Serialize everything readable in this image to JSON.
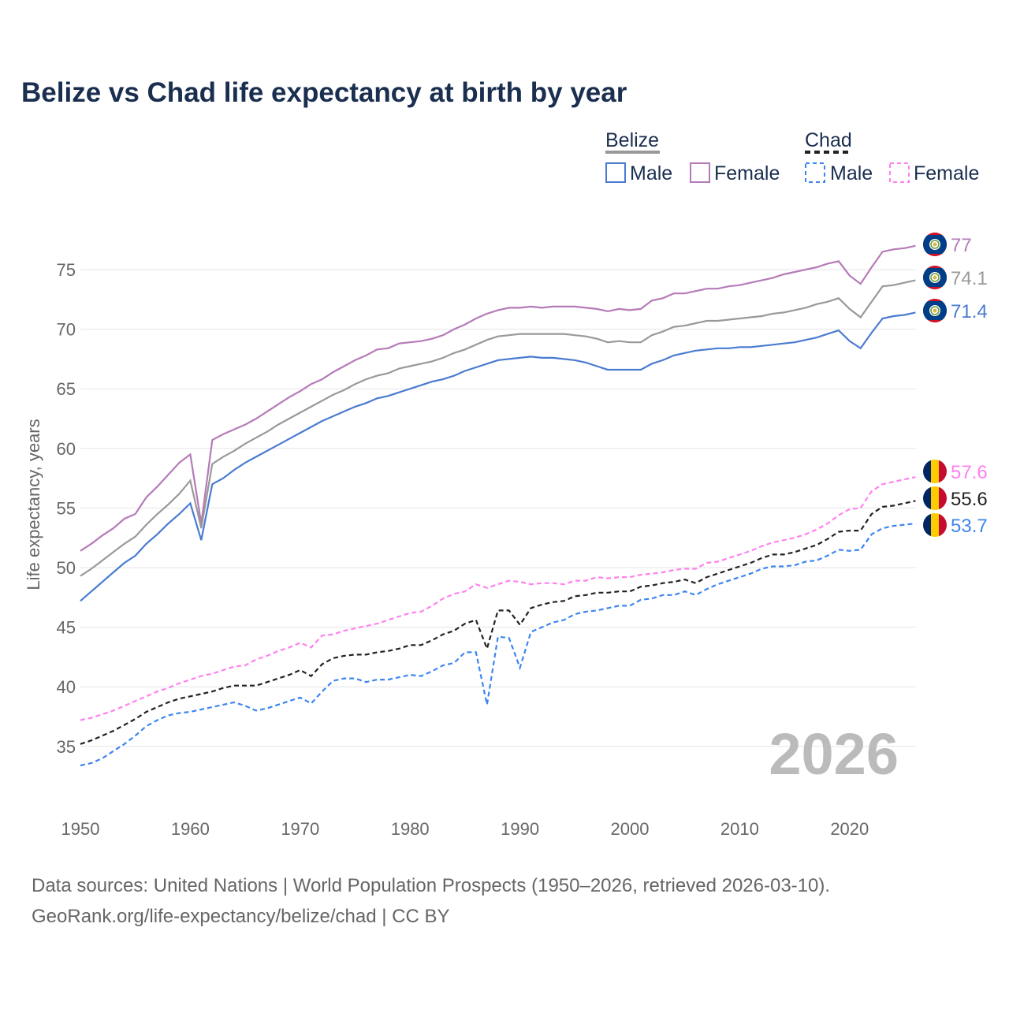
{
  "chart_data": {
    "type": "line",
    "title": "Belize vs Chad life expectancy at birth by year",
    "xlabel": "",
    "ylabel": "Life expectancy, years",
    "xlim": [
      1950,
      2026
    ],
    "ylim": [
      31,
      79
    ],
    "x_ticks": [
      "1950",
      "1960",
      "1970",
      "1980",
      "1990",
      "2000",
      "2010",
      "2020"
    ],
    "y_ticks": [
      "35",
      "40",
      "45",
      "50",
      "55",
      "60",
      "65",
      "70",
      "75"
    ],
    "grid": true,
    "watermark_year": "2026",
    "legend": {
      "placement": "top-right",
      "groups": [
        {
          "name": "Belize",
          "items": [
            "Male",
            "Female"
          ]
        },
        {
          "name": "Chad",
          "items": [
            "Male",
            "Female"
          ]
        }
      ]
    },
    "x_start": 1950,
    "series": [
      {
        "name": "Belize Female",
        "country": "Belize",
        "color": "#b57bb8",
        "dashed": false,
        "end_label": "77",
        "values": [
          51.4,
          52.0,
          52.7,
          53.3,
          54.1,
          54.5,
          55.9,
          56.8,
          57.8,
          58.8,
          59.5,
          53.7,
          60.7,
          61.2,
          61.6,
          62.0,
          62.5,
          63.1,
          63.7,
          64.3,
          64.8,
          65.4,
          65.8,
          66.4,
          66.9,
          67.4,
          67.8,
          68.3,
          68.4,
          68.8,
          68.9,
          69.0,
          69.2,
          69.5,
          70.0,
          70.4,
          70.9,
          71.3,
          71.6,
          71.8,
          71.8,
          71.9,
          71.8,
          71.9,
          71.9,
          71.9,
          71.8,
          71.7,
          71.5,
          71.7,
          71.6,
          71.7,
          72.4,
          72.6,
          73.0,
          73.0,
          73.2,
          73.4,
          73.4,
          73.6,
          73.7,
          73.9,
          74.1,
          74.3,
          74.6,
          74.8,
          75.0,
          75.2,
          75.5,
          75.7,
          74.5,
          73.8,
          75.2,
          76.5,
          76.7,
          76.8,
          77.0
        ]
      },
      {
        "name": "Belize Total",
        "country": "Belize",
        "color": "#999999",
        "dashed": false,
        "end_label": "74.1",
        "values": [
          49.3,
          49.9,
          50.6,
          51.3,
          52.0,
          52.6,
          53.6,
          54.5,
          55.3,
          56.2,
          57.3,
          53.3,
          58.7,
          59.3,
          59.8,
          60.4,
          60.9,
          61.4,
          62.0,
          62.5,
          63.0,
          63.5,
          64.0,
          64.5,
          64.9,
          65.4,
          65.8,
          66.1,
          66.3,
          66.7,
          66.9,
          67.1,
          67.3,
          67.6,
          68.0,
          68.3,
          68.7,
          69.1,
          69.4,
          69.5,
          69.6,
          69.6,
          69.6,
          69.6,
          69.6,
          69.5,
          69.4,
          69.2,
          68.9,
          69.0,
          68.9,
          68.9,
          69.5,
          69.8,
          70.2,
          70.3,
          70.5,
          70.7,
          70.7,
          70.8,
          70.9,
          71.0,
          71.1,
          71.3,
          71.4,
          71.6,
          71.8,
          72.1,
          72.3,
          72.6,
          71.7,
          71.0,
          72.3,
          73.6,
          73.7,
          73.9,
          74.1
        ]
      },
      {
        "name": "Belize Male",
        "country": "Belize",
        "color": "#4a7bd0",
        "dashed": false,
        "end_label": "71.4",
        "values": [
          47.2,
          48.0,
          48.8,
          49.6,
          50.4,
          51.0,
          52.0,
          52.8,
          53.7,
          54.5,
          55.4,
          52.3,
          57.0,
          57.5,
          58.2,
          58.8,
          59.3,
          59.8,
          60.3,
          60.8,
          61.3,
          61.8,
          62.3,
          62.7,
          63.1,
          63.5,
          63.8,
          64.2,
          64.4,
          64.7,
          65.0,
          65.3,
          65.6,
          65.8,
          66.1,
          66.5,
          66.8,
          67.1,
          67.4,
          67.5,
          67.6,
          67.7,
          67.6,
          67.6,
          67.5,
          67.4,
          67.2,
          66.9,
          66.6,
          66.6,
          66.6,
          66.6,
          67.1,
          67.4,
          67.8,
          68.0,
          68.2,
          68.3,
          68.4,
          68.4,
          68.5,
          68.5,
          68.6,
          68.7,
          68.8,
          68.9,
          69.1,
          69.3,
          69.6,
          69.9,
          69.0,
          68.4,
          69.7,
          70.9,
          71.1,
          71.2,
          71.4
        ]
      },
      {
        "name": "Chad Female",
        "country": "Chad",
        "color": "#ff80f0",
        "dashed": true,
        "end_label": "57.6",
        "values": [
          37.2,
          37.4,
          37.7,
          38.0,
          38.4,
          38.8,
          39.2,
          39.6,
          39.9,
          40.3,
          40.6,
          40.9,
          41.1,
          41.4,
          41.7,
          41.8,
          42.3,
          42.6,
          43.0,
          43.3,
          43.7,
          43.3,
          44.3,
          44.4,
          44.7,
          44.9,
          45.1,
          45.3,
          45.6,
          45.9,
          46.2,
          46.3,
          46.8,
          47.4,
          47.8,
          48.0,
          48.6,
          48.3,
          48.6,
          48.9,
          48.8,
          48.6,
          48.7,
          48.7,
          48.6,
          48.9,
          48.9,
          49.2,
          49.1,
          49.2,
          49.2,
          49.4,
          49.5,
          49.6,
          49.8,
          49.9,
          49.9,
          50.4,
          50.5,
          50.8,
          51.1,
          51.4,
          51.8,
          52.1,
          52.3,
          52.5,
          52.8,
          53.2,
          53.7,
          54.4,
          54.9,
          55.0,
          56.4,
          57.0,
          57.2,
          57.4,
          57.6
        ]
      },
      {
        "name": "Chad Total",
        "country": "Chad",
        "color": "#222222",
        "dashed": true,
        "end_label": "55.6",
        "values": [
          35.2,
          35.5,
          35.9,
          36.3,
          36.8,
          37.3,
          37.9,
          38.3,
          38.7,
          39.0,
          39.2,
          39.4,
          39.6,
          39.9,
          40.1,
          40.1,
          40.1,
          40.4,
          40.7,
          41.0,
          41.4,
          40.9,
          41.9,
          42.4,
          42.6,
          42.7,
          42.7,
          42.9,
          43.0,
          43.2,
          43.5,
          43.5,
          43.9,
          44.4,
          44.7,
          45.3,
          45.6,
          43.2,
          46.4,
          46.4,
          45.2,
          46.6,
          46.9,
          47.1,
          47.2,
          47.6,
          47.7,
          47.9,
          47.9,
          48.0,
          48.0,
          48.4,
          48.5,
          48.7,
          48.8,
          49.0,
          48.7,
          49.2,
          49.5,
          49.8,
          50.1,
          50.4,
          50.8,
          51.1,
          51.1,
          51.3,
          51.6,
          51.9,
          52.4,
          53.0,
          53.1,
          53.1,
          54.5,
          55.1,
          55.2,
          55.4,
          55.6
        ]
      },
      {
        "name": "Chad Male",
        "country": "Chad",
        "color": "#3d85f0",
        "dashed": true,
        "end_label": "53.7",
        "values": [
          33.4,
          33.6,
          34.0,
          34.6,
          35.2,
          35.9,
          36.7,
          37.2,
          37.6,
          37.8,
          37.9,
          38.1,
          38.3,
          38.5,
          38.7,
          38.4,
          38.0,
          38.2,
          38.5,
          38.8,
          39.1,
          38.6,
          39.6,
          40.5,
          40.7,
          40.7,
          40.4,
          40.6,
          40.6,
          40.8,
          41.0,
          40.9,
          41.3,
          41.8,
          42.0,
          42.9,
          42.9,
          38.5,
          44.2,
          44.1,
          41.6,
          44.6,
          45.0,
          45.4,
          45.6,
          46.1,
          46.3,
          46.4,
          46.6,
          46.8,
          46.8,
          47.3,
          47.4,
          47.7,
          47.7,
          48.0,
          47.7,
          48.2,
          48.6,
          48.9,
          49.2,
          49.5,
          49.9,
          50.1,
          50.1,
          50.2,
          50.5,
          50.6,
          51.0,
          51.5,
          51.4,
          51.5,
          52.8,
          53.3,
          53.5,
          53.6,
          53.7
        ]
      }
    ],
    "source_line1": "Data sources: United Nations | World Population Prospects (1950–2026, retrieved 2026-03-10).",
    "source_line2": "GeoRank.org/life-expectancy/belize/chad | CC BY"
  }
}
